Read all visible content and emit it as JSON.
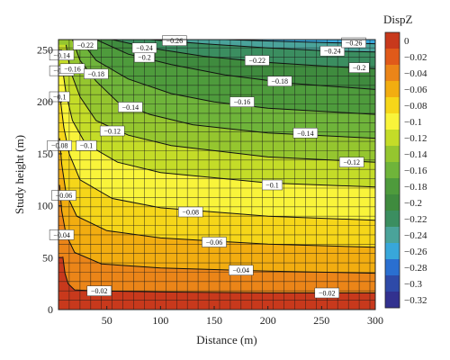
{
  "chart_data": {
    "type": "heatmap",
    "title": "",
    "xlabel": "Distance (m)",
    "ylabel": "Study height (m)",
    "colorbar_title": "DispZ",
    "xlim": [
      5,
      300
    ],
    "ylim": [
      0,
      260
    ],
    "x_ticks": [
      50,
      100,
      150,
      200,
      250,
      300
    ],
    "y_ticks": [
      0,
      50,
      100,
      150,
      200,
      250
    ],
    "grid": true,
    "colorbar": {
      "levels": [
        0,
        -0.02,
        -0.04,
        -0.06,
        -0.08,
        -0.1,
        -0.12,
        -0.14,
        -0.16,
        -0.18,
        -0.2,
        -0.22,
        -0.24,
        -0.26,
        -0.28,
        -0.3,
        -0.32
      ],
      "tick_labels": [
        "0",
        "−0.02",
        "−0.04",
        "−0.06",
        "−0.08",
        "−0.1",
        "−0.12",
        "−0.14",
        "−0.16",
        "−0.18",
        "−0.2",
        "−0.22",
        "−0.24",
        "−0.26",
        "−0.28",
        "−0.3",
        "−0.32"
      ],
      "colors": [
        "#c8391c",
        "#e05a1a",
        "#eb8518",
        "#f2ad10",
        "#f6d619",
        "#f9f43a",
        "#c4dc28",
        "#95c62f",
        "#6fb43a",
        "#4e9b3c",
        "#3f8b3e",
        "#3b8e60",
        "#4aa39a",
        "#38a7da",
        "#2a6fd0",
        "#2e4aa8",
        "#32318f"
      ]
    },
    "contours": [
      {
        "level": -0.02,
        "label": "−0.02",
        "points": [
          [
            9,
            51
          ],
          [
            11,
            35
          ],
          [
            14,
            25
          ],
          [
            20,
            19
          ],
          [
            40,
            18
          ],
          [
            100,
            17
          ],
          [
            200,
            16
          ],
          [
            300,
            16
          ]
        ]
      },
      {
        "level": -0.04,
        "label": "−0.04",
        "points": [
          [
            6,
            120
          ],
          [
            8,
            95
          ],
          [
            12,
            72
          ],
          [
            20,
            55
          ],
          [
            45,
            44
          ],
          [
            100,
            40
          ],
          [
            200,
            37
          ],
          [
            300,
            35
          ]
        ]
      },
      {
        "level": -0.06,
        "label": "−0.06",
        "points": [
          [
            6,
            165
          ],
          [
            8,
            140
          ],
          [
            12,
            112
          ],
          [
            22,
            90
          ],
          [
            50,
            76
          ],
          [
            100,
            69
          ],
          [
            200,
            63
          ],
          [
            300,
            60
          ]
        ]
      },
      {
        "level": -0.08,
        "label": "−0.08",
        "points": [
          [
            7,
            200
          ],
          [
            10,
            175
          ],
          [
            15,
            150
          ],
          [
            25,
            125
          ],
          [
            55,
            107
          ],
          [
            100,
            98
          ],
          [
            200,
            90
          ],
          [
            300,
            86
          ]
        ]
      },
      {
        "level": -0.1,
        "label": "−0.1",
        "points": [
          [
            9,
            230
          ],
          [
            12,
            208
          ],
          [
            18,
            182
          ],
          [
            30,
            160
          ],
          [
            60,
            142
          ],
          [
            100,
            132
          ],
          [
            200,
            122
          ],
          [
            300,
            118
          ]
        ]
      },
      {
        "level": -0.12,
        "label": "−0.12",
        "points": [
          [
            12,
            255
          ],
          [
            16,
            230
          ],
          [
            25,
            205
          ],
          [
            40,
            182
          ],
          [
            70,
            168
          ],
          [
            110,
            158
          ],
          [
            200,
            147
          ],
          [
            300,
            142
          ]
        ]
      },
      {
        "level": -0.14,
        "label": "−0.14",
        "points": [
          [
            18,
            260
          ],
          [
            25,
            240
          ],
          [
            40,
            220
          ],
          [
            60,
            200
          ],
          [
            90,
            188
          ],
          [
            130,
            178
          ],
          [
            200,
            170
          ],
          [
            300,
            165
          ]
        ]
      },
      {
        "level": -0.16,
        "label": "−0.16",
        "points": [
          [
            25,
            260
          ],
          [
            40,
            240
          ],
          [
            70,
            222
          ],
          [
            110,
            208
          ],
          [
            150,
            200
          ],
          [
            200,
            194
          ],
          [
            300,
            188
          ]
        ]
      },
      {
        "level": -0.18,
        "label": "−0.18",
        "points": [
          [
            40,
            260
          ],
          [
            70,
            246
          ],
          [
            110,
            236
          ],
          [
            160,
            226
          ],
          [
            220,
            218
          ],
          [
            300,
            212
          ]
        ]
      },
      {
        "level": -0.2,
        "label": "−0.2",
        "points": [
          [
            55,
            260
          ],
          [
            90,
            252
          ],
          [
            140,
            244
          ],
          [
            200,
            238
          ],
          [
            260,
            234
          ],
          [
            300,
            232
          ]
        ]
      },
      {
        "level": -0.22,
        "label": "−0.22",
        "points": [
          [
            90,
            260
          ],
          [
            140,
            256
          ],
          [
            200,
            252
          ],
          [
            260,
            249
          ],
          [
            300,
            248
          ]
        ]
      },
      {
        "level": -0.24,
        "label": "−0.24",
        "points": [
          [
            160,
            260
          ],
          [
            220,
            258
          ],
          [
            260,
            257
          ],
          [
            300,
            256
          ]
        ]
      }
    ],
    "contour_labels": [
      {
        "text": "−0.02",
        "x": 43,
        "y": 18
      },
      {
        "text": "−0.02",
        "x": 255,
        "y": 16
      },
      {
        "text": "−0.04",
        "x": 8,
        "y": 72
      },
      {
        "text": "−0.04",
        "x": 175,
        "y": 38
      },
      {
        "text": "−0.06",
        "x": 10,
        "y": 110
      },
      {
        "text": "−0.06",
        "x": 150,
        "y": 65
      },
      {
        "text": "−0.08",
        "x": 6,
        "y": 158
      },
      {
        "text": "−0.08",
        "x": 128,
        "y": 94
      },
      {
        "text": "−0.1",
        "x": 6,
        "y": 205
      },
      {
        "text": "−0.1",
        "x": 31,
        "y": 158
      },
      {
        "text": "−0.1",
        "x": 204,
        "y": 120
      },
      {
        "text": "−0.12",
        "x": 8,
        "y": 230
      },
      {
        "text": "−0.12",
        "x": 55,
        "y": 172
      },
      {
        "text": "−0.12",
        "x": 278,
        "y": 142
      },
      {
        "text": "−0.14",
        "x": 8,
        "y": 245
      },
      {
        "text": "−0.14",
        "x": 72,
        "y": 195
      },
      {
        "text": "−0.14",
        "x": 235,
        "y": 170
      },
      {
        "text": "−0.16",
        "x": 18,
        "y": 232
      },
      {
        "text": "−0.16",
        "x": 176,
        "y": 200
      },
      {
        "text": "−0.18",
        "x": 40,
        "y": 227
      },
      {
        "text": "−0.18",
        "x": 211,
        "y": 220
      },
      {
        "text": "−0.2",
        "x": 85,
        "y": 243
      },
      {
        "text": "−0.2",
        "x": 285,
        "y": 233
      },
      {
        "text": "−0.22",
        "x": 30,
        "y": 255
      },
      {
        "text": "−0.22",
        "x": 190,
        "y": 240
      },
      {
        "text": "−0.24",
        "x": 85,
        "y": 252
      },
      {
        "text": "−0.24",
        "x": 260,
        "y": 249
      },
      {
        "text": "−0.26",
        "x": 113,
        "y": 259
      },
      {
        "text": "−0.26",
        "x": 280,
        "y": 257
      }
    ]
  }
}
